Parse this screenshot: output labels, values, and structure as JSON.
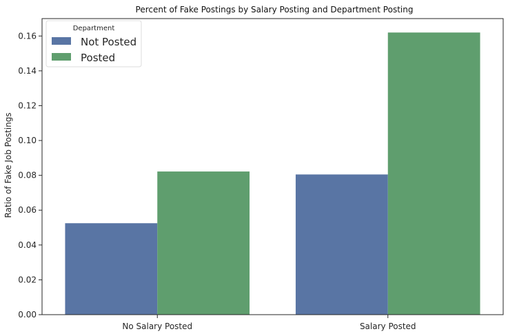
{
  "chart_data": {
    "type": "bar",
    "title": "Percent of Fake Postings by Salary Posting and Department Posting",
    "xlabel": "",
    "ylabel": "Ratio of Fake Job Postings",
    "categories": [
      "No Salary Posted",
      "Salary Posted"
    ],
    "series": [
      {
        "name": "Not Posted",
        "values": [
          0.0525,
          0.0805
        ],
        "color": "#5975a4"
      },
      {
        "name": "Posted",
        "values": [
          0.0822,
          0.162
        ],
        "color": "#5f9e6e"
      }
    ],
    "ylim": [
      0,
      0.17
    ],
    "yticks": [
      "0.00",
      "0.02",
      "0.04",
      "0.06",
      "0.08",
      "0.10",
      "0.12",
      "0.14",
      "0.16"
    ],
    "grid": false,
    "legend": {
      "title": "Department",
      "placement": "top-left"
    }
  }
}
